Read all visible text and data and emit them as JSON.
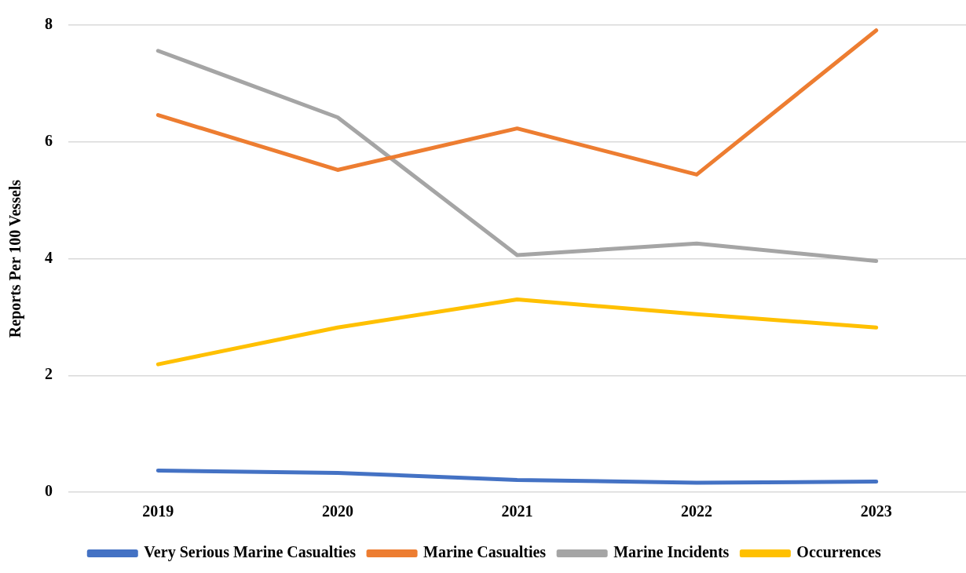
{
  "chart_data": {
    "type": "line",
    "ylabel": "Reports Per 100 Vessels",
    "categories": [
      "2019",
      "2020",
      "2021",
      "2022",
      "2023"
    ],
    "series": [
      {
        "name": "Very Serious Marine Casualties",
        "color": "#4472c4",
        "values": [
          0.37,
          0.33,
          0.21,
          0.16,
          0.18
        ]
      },
      {
        "name": "Marine Casualties",
        "color": "#ed7d31",
        "values": [
          6.46,
          5.52,
          6.23,
          5.44,
          7.91
        ]
      },
      {
        "name": "Marine Incidents",
        "color": "#a5a5a5",
        "values": [
          7.56,
          6.42,
          4.06,
          4.26,
          3.96
        ]
      },
      {
        "name": "Occurrences",
        "color": "#ffc000",
        "values": [
          2.19,
          2.82,
          3.3,
          3.05,
          2.82
        ]
      }
    ],
    "ylim": [
      0,
      8
    ],
    "yticks": [
      0,
      2,
      4,
      6,
      8
    ],
    "grid": "y",
    "legend": "bottom",
    "marker": "none",
    "line_style": "solid"
  }
}
